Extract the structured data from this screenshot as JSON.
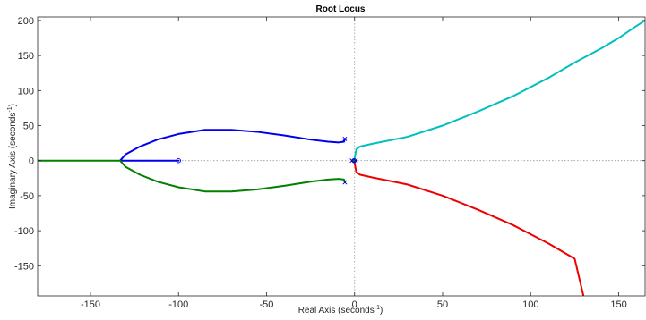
{
  "chart_data": {
    "type": "line",
    "title": "Root Locus",
    "xlabel": "Real Axis (seconds",
    "xlabel_sup": "-1",
    "xlabel_close": ")",
    "ylabel": "Imaginary Axis (seconds",
    "ylabel_sup": "-1",
    "ylabel_close": ")",
    "xlim": [
      -180,
      165
    ],
    "ylim": [
      -193,
      205
    ],
    "xticks": [
      -150,
      -100,
      -50,
      0,
      50,
      100,
      150
    ],
    "yticks": [
      -150,
      -100,
      -50,
      0,
      50,
      100,
      150,
      200
    ],
    "grid": false,
    "reference_lines": [
      "x = 0 dotted",
      "y = 0 dotted"
    ],
    "box": true,
    "series": [
      {
        "color": "#0000ee",
        "points": [
          [
            -100,
            0
          ],
          [
            -133,
            0
          ],
          [
            -133,
            0.5
          ],
          [
            -130,
            9
          ],
          [
            -122,
            20
          ],
          [
            -112,
            30
          ],
          [
            -100,
            38
          ],
          [
            -85,
            44
          ],
          [
            -70,
            44
          ],
          [
            -55,
            41
          ],
          [
            -40,
            36
          ],
          [
            -25,
            30
          ],
          [
            -15,
            27
          ],
          [
            -9,
            26
          ],
          [
            -6,
            27
          ],
          [
            -5.5,
            31
          ]
        ]
      },
      {
        "color": "#008000",
        "points": [
          [
            -180,
            0
          ],
          [
            -133,
            0
          ],
          [
            -133,
            -0.5
          ],
          [
            -130,
            -9
          ],
          [
            -122,
            -20
          ],
          [
            -112,
            -30
          ],
          [
            -100,
            -38
          ],
          [
            -85,
            -44
          ],
          [
            -70,
            -44
          ],
          [
            -55,
            -41
          ],
          [
            -40,
            -36
          ],
          [
            -25,
            -30
          ],
          [
            -15,
            -27
          ],
          [
            -9,
            -26
          ],
          [
            -6,
            -27
          ],
          [
            -5.5,
            -31
          ]
        ]
      },
      {
        "color": "#00bfbf",
        "points": [
          [
            -1.5,
            0
          ],
          [
            0,
            3
          ],
          [
            0.5,
            10
          ],
          [
            1,
            16
          ],
          [
            3,
            20
          ],
          [
            10,
            24
          ],
          [
            30,
            34
          ],
          [
            50,
            50
          ],
          [
            70,
            70
          ],
          [
            90,
            92
          ],
          [
            110,
            118
          ],
          [
            125,
            140
          ],
          [
            140,
            160
          ],
          [
            150,
            175
          ],
          [
            160,
            192
          ],
          [
            165,
            200
          ]
        ]
      },
      {
        "color": "#ee0000",
        "points": [
          [
            -1.5,
            0
          ],
          [
            0,
            -3
          ],
          [
            0.5,
            -10
          ],
          [
            1,
            -16
          ],
          [
            3,
            -20
          ],
          [
            10,
            -24
          ],
          [
            30,
            -34
          ],
          [
            50,
            -50
          ],
          [
            70,
            -70
          ],
          [
            90,
            -92
          ],
          [
            110,
            -118
          ],
          [
            125,
            -140
          ],
          [
            130,
            -193
          ]
        ]
      },
      {
        "color": "#008000",
        "points": [
          [
            -1.5,
            0
          ],
          [
            0.6,
            0
          ]
        ]
      }
    ],
    "poles": [
      [
        -5.5,
        31
      ],
      [
        -5.5,
        -31
      ],
      [
        -1.5,
        0
      ],
      [
        0.6,
        0
      ]
    ],
    "zeros": [
      [
        -100,
        0
      ],
      [
        -0.3,
        0
      ]
    ],
    "marker_color": "#0000ee"
  }
}
